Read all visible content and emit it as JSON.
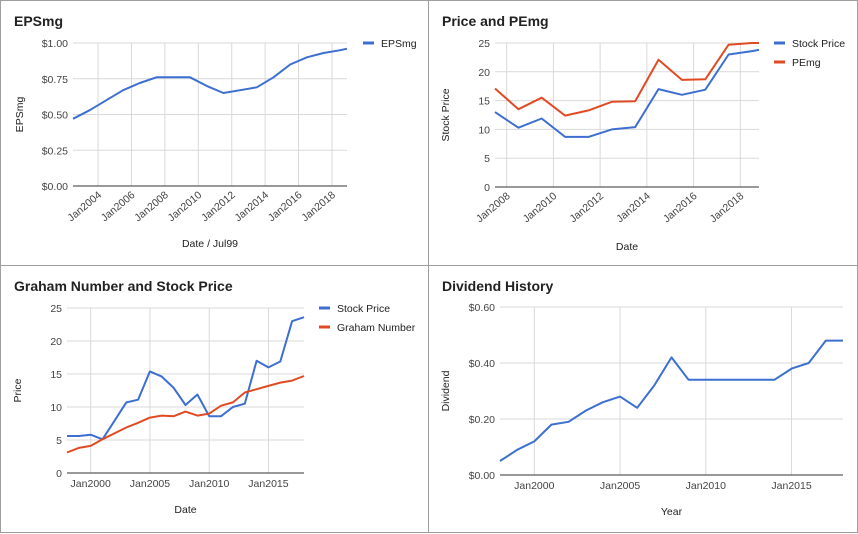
{
  "chart_data": [
    {
      "type": "line",
      "title": "EPSmg",
      "xlabel": "Date / Jul99",
      "ylabel": "EPSmg",
      "x_ticks": [
        "Jan2004",
        "Jan2006",
        "Jan2008",
        "Jan2010",
        "Jan2012",
        "Jan2014",
        "Jan2016",
        "Jan2018"
      ],
      "y_ticks": [
        "$0.00",
        "$0.25",
        "$0.50",
        "$0.75",
        "$1.00"
      ],
      "ylim": [
        0,
        1.0
      ],
      "xlim": [
        2002.5,
        2018.9
      ],
      "grid": true,
      "legend_position": "top-right",
      "series": [
        {
          "name": "EPSmg",
          "color": "#3c6fd0",
          "x": [
            2002.5,
            2003.5,
            2004.5,
            2005.5,
            2006.5,
            2007.5,
            2008.5,
            2009.5,
            2010.5,
            2011.5,
            2012.5,
            2013.5,
            2014.5,
            2015.5,
            2016.5,
            2017.5,
            2018.5,
            2018.9
          ],
          "y": [
            0.47,
            0.53,
            0.6,
            0.67,
            0.72,
            0.76,
            0.76,
            0.76,
            0.7,
            0.65,
            0.67,
            0.69,
            0.76,
            0.85,
            0.9,
            0.93,
            0.95,
            0.96
          ]
        }
      ]
    },
    {
      "type": "line",
      "title": "Price and PEmg",
      "xlabel": "Date",
      "ylabel": "Stock Price",
      "x_ticks": [
        "Jan2008",
        "Jan2010",
        "Jan2012",
        "Jan2014",
        "Jan2016",
        "Jan2018"
      ],
      "y_ticks": [
        "0",
        "5",
        "10",
        "15",
        "20",
        "25"
      ],
      "ylim": [
        0,
        25
      ],
      "xlim": [
        2007.5,
        2018.8
      ],
      "grid": true,
      "legend_position": "top-right",
      "series": [
        {
          "name": "Stock Price",
          "color": "#3c6fd0",
          "x": [
            2007.5,
            2008.5,
            2009.5,
            2010.5,
            2011.5,
            2012.5,
            2013.5,
            2014.5,
            2015.5,
            2016.5,
            2017.5,
            2018.5,
            2018.8
          ],
          "y": [
            13.0,
            10.3,
            11.9,
            8.7,
            8.7,
            10.0,
            10.4,
            17.0,
            16.0,
            16.9,
            23.0,
            23.6,
            23.8
          ]
        },
        {
          "name": "PEmg",
          "color": "#e04b24",
          "x": [
            2007.5,
            2008.5,
            2009.5,
            2010.5,
            2011.5,
            2012.5,
            2013.5,
            2014.5,
            2015.5,
            2016.5,
            2017.5,
            2018.5,
            2018.8
          ],
          "y": [
            17.1,
            13.5,
            15.5,
            12.4,
            13.3,
            14.8,
            14.9,
            22.1,
            18.6,
            18.7,
            24.7,
            25.0,
            25.0
          ]
        }
      ]
    },
    {
      "type": "line",
      "title": "Graham Number and Stock Price",
      "xlabel": "Date",
      "ylabel": "Price",
      "x_ticks": [
        "Jan2000",
        "Jan2005",
        "Jan2010",
        "Jan2015"
      ],
      "y_ticks": [
        "0",
        "5",
        "10",
        "15",
        "20",
        "25"
      ],
      "ylim": [
        0,
        25
      ],
      "xlim": [
        1998.0,
        2018.0
      ],
      "grid": true,
      "legend_position": "top-right",
      "series": [
        {
          "name": "Stock Price",
          "color": "#3c6fd0",
          "x": [
            1998.0,
            1999.0,
            2000.0,
            2001.0,
            2002.0,
            2003.0,
            2004.0,
            2005.0,
            2006.0,
            2007.0,
            2008.0,
            2009.0,
            2010.0,
            2011.0,
            2012.0,
            2013.0,
            2014.0,
            2015.0,
            2016.0,
            2017.0,
            2018.0
          ],
          "y": [
            5.6,
            5.6,
            5.8,
            5.1,
            7.9,
            10.7,
            11.1,
            15.4,
            14.6,
            12.9,
            10.3,
            11.9,
            8.6,
            8.6,
            10.0,
            10.5,
            17.0,
            16.0,
            16.9,
            23.0,
            23.6
          ]
        },
        {
          "name": "Graham Number",
          "color": "#e04b24",
          "x": [
            1998.0,
            1999.0,
            2000.0,
            2001.0,
            2002.0,
            2003.0,
            2004.0,
            2005.0,
            2006.0,
            2007.0,
            2008.0,
            2009.0,
            2010.0,
            2011.0,
            2012.0,
            2013.0,
            2014.0,
            2015.0,
            2016.0,
            2017.0,
            2018.0
          ],
          "y": [
            3.1,
            3.8,
            4.1,
            5.1,
            6.0,
            6.9,
            7.6,
            8.4,
            8.7,
            8.6,
            9.3,
            8.7,
            9.0,
            10.2,
            10.7,
            12.2,
            12.7,
            13.2,
            13.7,
            14.0,
            14.7
          ]
        }
      ]
    },
    {
      "type": "line",
      "title": "Dividend History",
      "xlabel": "Year",
      "ylabel": "Dividend",
      "x_ticks": [
        "Jan2000",
        "Jan2005",
        "Jan2010",
        "Jan2015"
      ],
      "y_ticks": [
        "$0.00",
        "$0.20",
        "$0.40",
        "$0.60"
      ],
      "ylim": [
        0,
        0.6
      ],
      "xlim": [
        1998.0,
        2018.0
      ],
      "grid": true,
      "series": [
        {
          "name": "Dividend",
          "color": "#3c6fd0",
          "x": [
            1998.0,
            1999.0,
            2000.0,
            2001.0,
            2002.0,
            2003.0,
            2004.0,
            2005.0,
            2006.0,
            2007.0,
            2008.0,
            2009.0,
            2010.0,
            2011.0,
            2012.0,
            2013.0,
            2014.0,
            2015.0,
            2016.0,
            2017.0,
            2018.0
          ],
          "y": [
            0.05,
            0.09,
            0.12,
            0.18,
            0.19,
            0.23,
            0.26,
            0.28,
            0.24,
            0.32,
            0.42,
            0.34,
            0.34,
            0.34,
            0.34,
            0.34,
            0.34,
            0.38,
            0.4,
            0.48,
            0.48
          ]
        }
      ]
    }
  ]
}
